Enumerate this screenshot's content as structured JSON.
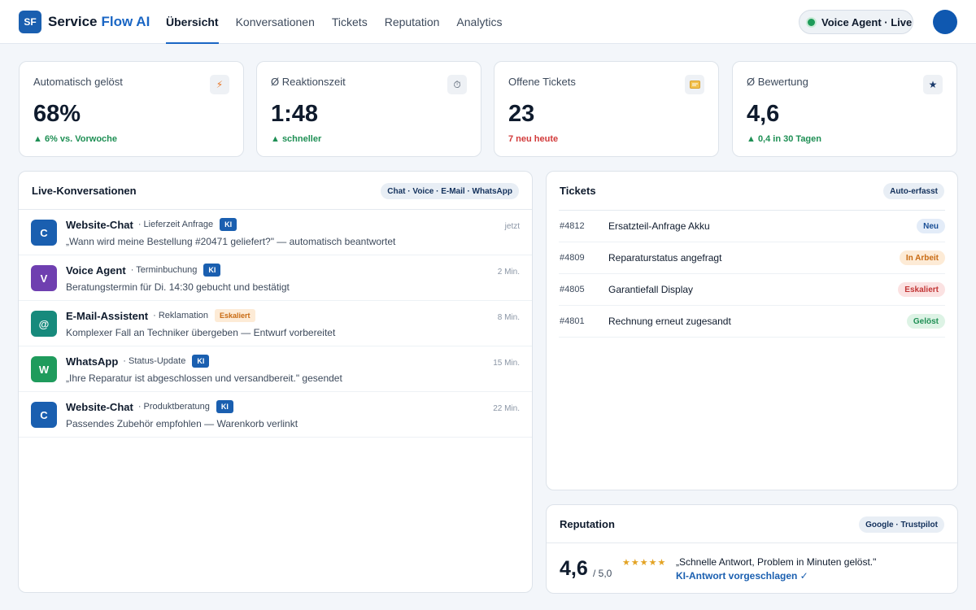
{
  "app": {
    "logo": "SF",
    "brand_name": "Service",
    "brand_accent": "Flow AI"
  },
  "nav": {
    "tabs": [
      {
        "label": "Übersicht",
        "active": true
      },
      {
        "label": "Konversationen",
        "active": false
      },
      {
        "label": "Tickets",
        "active": false
      },
      {
        "label": "Reputation",
        "active": false
      },
      {
        "label": "Analytics",
        "active": false
      }
    ]
  },
  "voice_agent": {
    "label": "Voice Agent · Live",
    "status_color": "#1e9b5a"
  },
  "kpis": [
    {
      "label": "Automatisch gelöst",
      "value": "68%",
      "sub": "▲ 6% vs. Vorwoche",
      "icon": "lightning-icon",
      "icon_glyph": "⚡",
      "tone": "green"
    },
    {
      "label": "Ø Reaktionszeit",
      "value": "1:48",
      "sub": "▲ schneller",
      "icon": "stopwatch-icon",
      "icon_glyph": "⏱",
      "tone": "green"
    },
    {
      "label": "Offene Tickets",
      "value": "23",
      "sub": "7 neu heute",
      "icon": "ticket-icon",
      "icon_glyph": "🎫",
      "tone": "red"
    },
    {
      "label": "Ø Bewertung",
      "value": "4,6",
      "sub": "▲ 0,4 in 30 Tagen",
      "icon": "star-icon",
      "icon_glyph": "★",
      "tone": "green"
    }
  ],
  "conversations": {
    "title": "Live-Konversationen",
    "channels_tag": "Chat · Voice · E-Mail · WhatsApp",
    "items": [
      {
        "initial": "C",
        "color": "#1a5fb0",
        "channel": "Website-Chat",
        "topic": "· Lieferzeit Anfrage",
        "badge": "KI",
        "badge_type": "ki",
        "message": "„Wann wird meine Bestellung #20471 geliefert?\" — automatisch beantwortet",
        "time": "jetzt"
      },
      {
        "initial": "V",
        "color": "#6f3fb0",
        "channel": "Voice Agent",
        "topic": "· Terminbuchung",
        "badge": "KI",
        "badge_type": "ki",
        "message": "Beratungstermin für Di. 14:30 gebucht und bestätigt",
        "time": "2 Min."
      },
      {
        "initial": "@",
        "color": "#178a7c",
        "channel": "E-Mail-Assistent",
        "topic": "· Reklamation",
        "badge": "Eskaliert",
        "badge_type": "esk",
        "message": "Komplexer Fall an Techniker übergeben — Entwurf vorbereitet",
        "time": "8 Min."
      },
      {
        "initial": "W",
        "color": "#1f9b5c",
        "channel": "WhatsApp",
        "topic": "· Status-Update",
        "badge": "KI",
        "badge_type": "ki",
        "message": "„Ihre Reparatur ist abgeschlossen und versandbereit.\" gesendet",
        "time": "15 Min."
      },
      {
        "initial": "C",
        "color": "#1a5fb0",
        "channel": "Website-Chat",
        "topic": "· Produktberatung",
        "badge": "KI",
        "badge_type": "ki",
        "message": "Passendes Zubehör empfohlen — Warenkorb verlinkt",
        "time": "22 Min."
      }
    ]
  },
  "tickets": {
    "title": "Tickets",
    "tag": "Auto-erfasst",
    "items": [
      {
        "id": "#4812",
        "title": "Ersatzteil-Anfrage Akku",
        "status": "Neu",
        "status_bg": "#e3ecf8",
        "status_fg": "#1a4f96"
      },
      {
        "id": "#4809",
        "title": "Reparaturstatus angefragt",
        "status": "In Arbeit",
        "status_bg": "#fdebd6",
        "status_fg": "#c86a12"
      },
      {
        "id": "#4805",
        "title": "Garantiefall Display",
        "status": "Eskaliert",
        "status_bg": "#fbe2e2",
        "status_fg": "#c23636"
      },
      {
        "id": "#4801",
        "title": "Rechnung erneut zugesandt",
        "status": "Gelöst",
        "status_bg": "#ddf3e5",
        "status_fg": "#1e8f54"
      }
    ]
  },
  "reputation": {
    "title": "Reputation",
    "tag": "Google · Trustpilot",
    "score": "4,6",
    "max": "/ 5,0",
    "stars": "★★★★★",
    "rating": 4.6,
    "quote": "„Schnelle Antwort, Problem in Minuten gelöst.\"",
    "action": "KI-Antwort vorgeschlagen ✓"
  }
}
